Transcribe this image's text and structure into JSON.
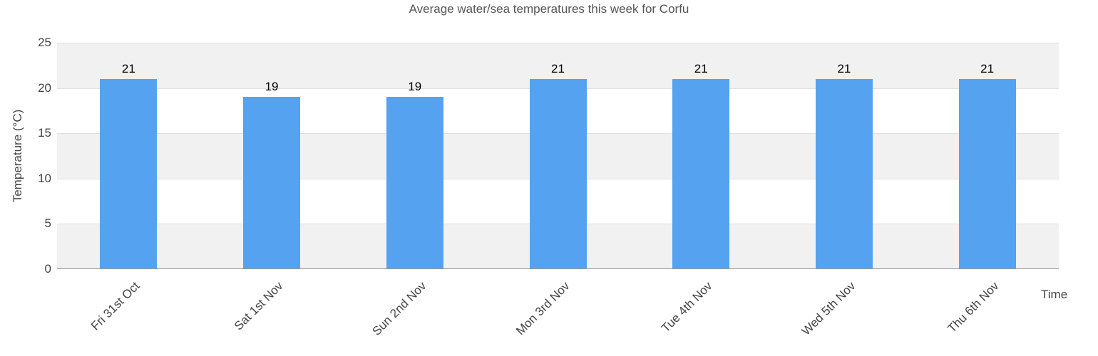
{
  "chart_data": {
    "type": "bar",
    "title": "Average water/sea temperatures this week for Corfu",
    "xlabel": "Time",
    "ylabel": "Temperature (°C)",
    "categories": [
      "Fri 31st Oct",
      "Sat 1st Nov",
      "Sun 2nd Nov",
      "Mon 3rd Nov",
      "Tue 4th Nov",
      "Wed 5th Nov",
      "Thu 6th Nov"
    ],
    "values": [
      21,
      19,
      19,
      21,
      21,
      21,
      21
    ],
    "ylim": [
      0,
      25
    ],
    "yticks": [
      0,
      5,
      10,
      15,
      20,
      25
    ],
    "grid": true,
    "legend": false,
    "bands_alternating": true,
    "colors": {
      "bar": "#55a3f0",
      "band": "#f1f1f1",
      "grid": "#e0e0e0",
      "axis": "#999999",
      "tick_text": "#444444",
      "title_text": "#555555",
      "value_text": "#000000"
    }
  }
}
